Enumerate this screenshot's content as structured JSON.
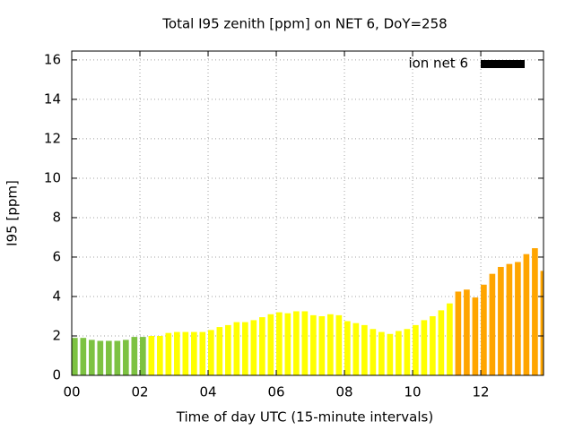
{
  "chart_data": {
    "type": "bar",
    "title": "Total I95 zenith [ppm] on NET 6, DoY=258",
    "xlabel": "Time of day UTC (15-minute intervals)",
    "ylabel": "I95 [ppm]",
    "x": [
      0,
      0.25,
      0.5,
      0.75,
      1,
      1.25,
      1.5,
      1.75,
      2,
      2.25,
      2.5,
      2.75,
      3,
      3.25,
      3.5,
      3.75,
      4,
      4.25,
      4.5,
      4.75,
      5,
      5.25,
      5.5,
      5.75,
      6,
      6.25,
      6.5,
      6.75,
      7,
      7.25,
      7.5,
      7.75,
      8,
      8.25,
      8.5,
      8.75,
      9,
      9.25,
      9.5,
      9.75,
      10,
      10.25,
      10.5,
      10.75,
      11,
      11.25,
      11.5,
      11.75,
      12,
      12.25,
      12.5,
      12.75,
      13,
      13.25,
      13.5,
      13.75
    ],
    "series": [
      {
        "name": "ion net 6",
        "color": "#000000",
        "values": [
          1.9,
          1.9,
          1.8,
          1.75,
          1.75,
          1.75,
          1.8,
          1.95,
          1.95,
          2.0,
          2.0,
          2.15,
          2.2,
          2.2,
          2.2,
          2.2,
          2.3,
          2.45,
          2.55,
          2.7,
          2.7,
          2.8,
          2.95,
          3.1,
          3.2,
          3.15,
          3.25,
          3.25,
          3.05,
          3.0,
          3.1,
          3.05,
          2.75,
          2.65,
          2.55,
          2.35,
          2.2,
          2.1,
          2.25,
          2.35,
          2.55,
          2.8,
          3.0,
          3.3,
          3.65,
          4.25,
          4.35,
          3.95,
          4.6,
          5.15,
          5.5,
          5.65,
          5.75,
          6.15,
          6.45,
          5.3
        ],
        "colors": [
          "#7dc242",
          "#7dc242",
          "#7dc242",
          "#7dc242",
          "#7dc242",
          "#7dc242",
          "#7dc242",
          "#7dc242",
          "#7dc242",
          "#ffff00",
          "#ffff00",
          "#ffff00",
          "#ffff00",
          "#ffff00",
          "#ffff00",
          "#ffff00",
          "#ffff00",
          "#ffff00",
          "#ffff00",
          "#ffff00",
          "#ffff00",
          "#ffff00",
          "#ffff00",
          "#ffff00",
          "#ffff00",
          "#ffff00",
          "#ffff00",
          "#ffff00",
          "#ffff00",
          "#ffff00",
          "#ffff00",
          "#ffff00",
          "#ffff00",
          "#ffff00",
          "#ffff00",
          "#ffff00",
          "#ffff00",
          "#ffff00",
          "#ffff00",
          "#ffff00",
          "#ffff00",
          "#ffff00",
          "#ffff00",
          "#ffff00",
          "#ffff00",
          "#ffa500",
          "#ffa500",
          "#ffa500",
          "#ffa500",
          "#ffa500",
          "#ffa500",
          "#ffa500",
          "#ffa500",
          "#ffa500",
          "#ffa500",
          "#ffa500"
        ]
      }
    ],
    "xlim": [
      0,
      13.84
    ],
    "ylim": [
      0,
      16.45
    ],
    "xticks": [
      {
        "value": 0,
        "label": "00"
      },
      {
        "value": 2,
        "label": "02"
      },
      {
        "value": 4,
        "label": "04"
      },
      {
        "value": 6,
        "label": "06"
      },
      {
        "value": 8,
        "label": "08"
      },
      {
        "value": 10,
        "label": "10"
      },
      {
        "value": 12,
        "label": "12"
      }
    ],
    "yticks": [
      0,
      2,
      4,
      6,
      8,
      10,
      12,
      14,
      16
    ],
    "grid": true,
    "legend": "upper right"
  }
}
